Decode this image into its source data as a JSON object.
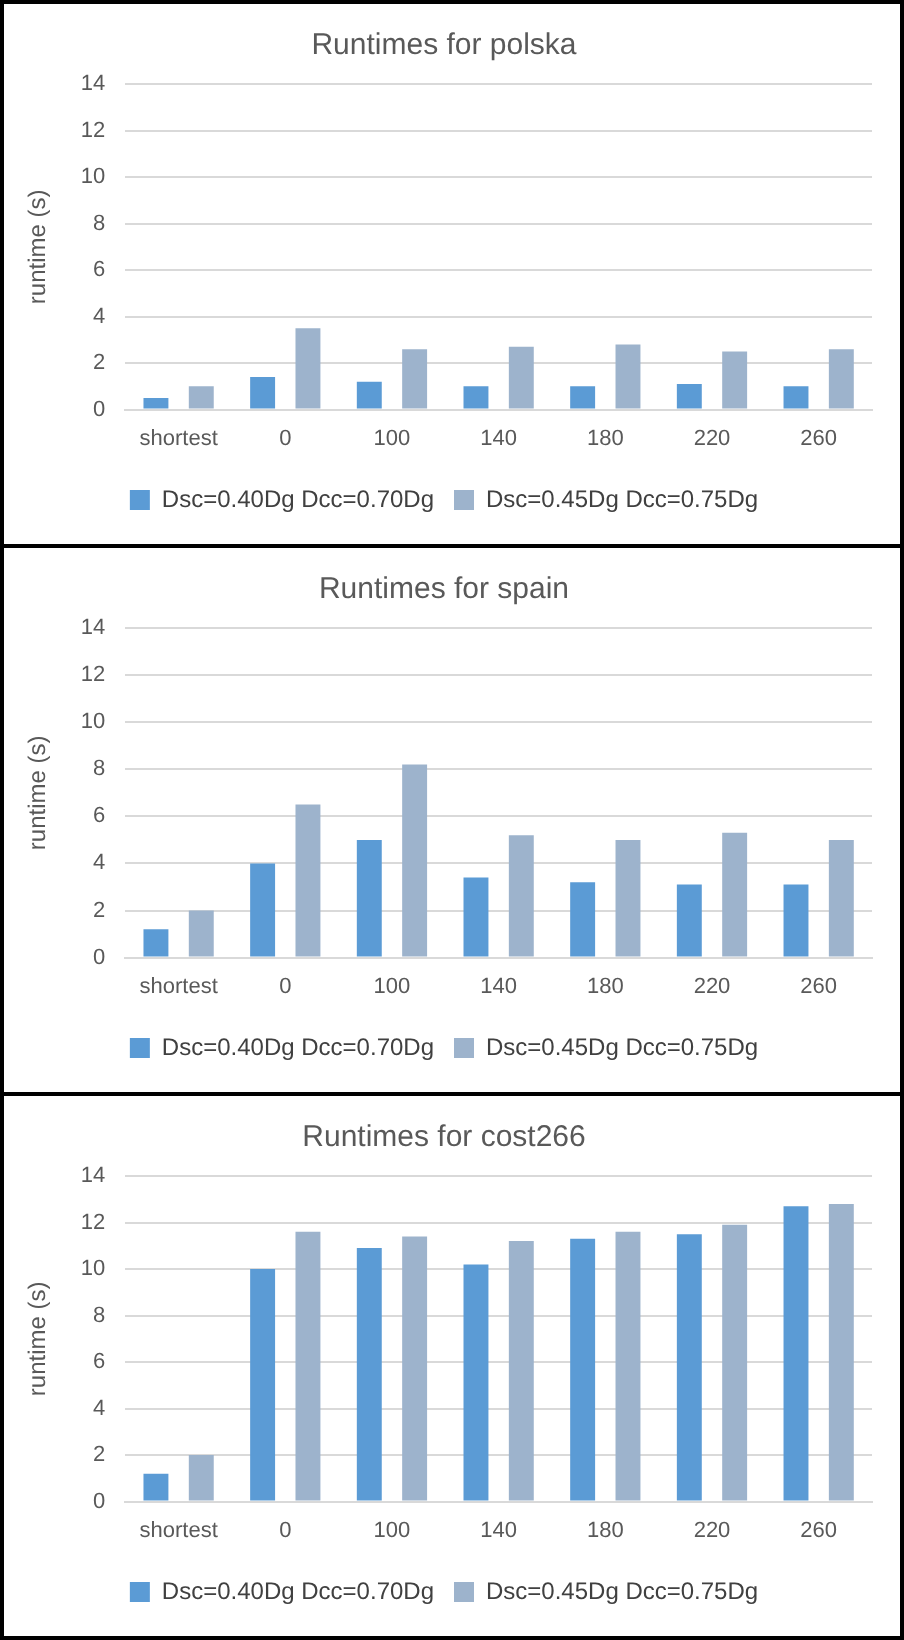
{
  "chart_data": [
    {
      "type": "bar",
      "title": "Runtimes for polska",
      "ylabel": "runtime (s)",
      "categories": [
        "shortest",
        "0",
        "100",
        "140",
        "180",
        "220",
        "260"
      ],
      "series": [
        {
          "name": "Dsc=0.40Dg Dcc=0.70Dg",
          "color": "#5b9bd5",
          "values": [
            0.5,
            1.4,
            1.2,
            1.0,
            1.0,
            1.1,
            1.0
          ]
        },
        {
          "name": "Dsc=0.45Dg Dcc=0.75Dg",
          "color": "#9db3cc",
          "values": [
            1.0,
            3.5,
            2.6,
            2.7,
            2.8,
            2.5,
            2.6
          ]
        }
      ],
      "ylim": [
        0,
        14
      ],
      "yticks": [
        0,
        2,
        4,
        6,
        8,
        10,
        12,
        14
      ],
      "grid": "y",
      "legend": "bottom"
    },
    {
      "type": "bar",
      "title": "Runtimes for spain",
      "ylabel": "runtime (s)",
      "categories": [
        "shortest",
        "0",
        "100",
        "140",
        "180",
        "220",
        "260"
      ],
      "series": [
        {
          "name": "Dsc=0.40Dg Dcc=0.70Dg",
          "color": "#5b9bd5",
          "values": [
            1.2,
            4.0,
            5.0,
            3.4,
            3.2,
            3.1,
            3.1
          ]
        },
        {
          "name": "Dsc=0.45Dg Dcc=0.75Dg",
          "color": "#9db3cc",
          "values": [
            2.0,
            6.5,
            8.2,
            5.2,
            5.0,
            5.3,
            5.0
          ]
        }
      ],
      "ylim": [
        0,
        14
      ],
      "yticks": [
        0,
        2,
        4,
        6,
        8,
        10,
        12,
        14
      ],
      "grid": "y",
      "legend": "bottom"
    },
    {
      "type": "bar",
      "title": "Runtimes for cost266",
      "ylabel": "runtime (s)",
      "categories": [
        "shortest",
        "0",
        "100",
        "140",
        "180",
        "220",
        "260"
      ],
      "series": [
        {
          "name": "Dsc=0.40Dg Dcc=0.70Dg",
          "color": "#5b9bd5",
          "values": [
            1.2,
            10.0,
            10.9,
            10.2,
            11.3,
            11.5,
            12.7
          ]
        },
        {
          "name": "Dsc=0.45Dg Dcc=0.75Dg",
          "color": "#9db3cc",
          "values": [
            2.0,
            11.6,
            11.4,
            11.2,
            11.6,
            11.9,
            12.8
          ]
        }
      ],
      "ylim": [
        0,
        14
      ],
      "yticks": [
        0,
        2,
        4,
        6,
        8,
        10,
        12,
        14
      ],
      "grid": "y",
      "legend": "bottom"
    }
  ]
}
